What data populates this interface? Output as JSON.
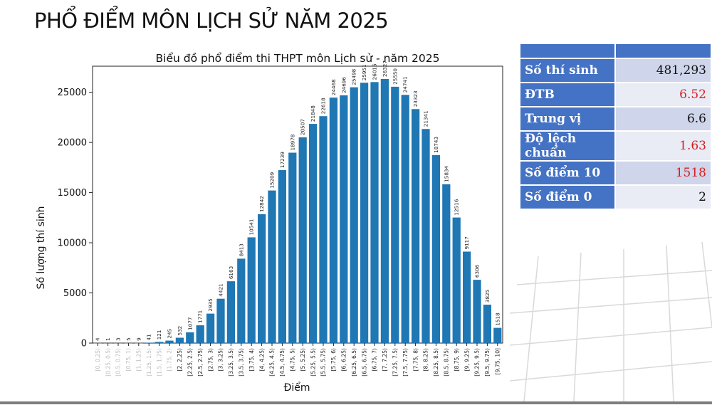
{
  "page_title": "PHỔ ĐIỂM MÔN LỊCH SỬ NĂM 2025",
  "stats_table": {
    "header": [
      "",
      ""
    ],
    "rows": [
      {
        "label": "Số thí sinh",
        "value": "481,293"
      },
      {
        "label": "ĐTB",
        "value": "6.52"
      },
      {
        "label": "Trung vị",
        "value": "6.6"
      },
      {
        "label": "Độ lệch chuẩn",
        "value": "1.63"
      },
      {
        "label": "Số điểm 10",
        "value": "1518"
      },
      {
        "label": "Số điểm 0",
        "value": "2"
      }
    ]
  },
  "colors": {
    "bar": "#1f77b4",
    "table_header": "#4472c4",
    "highlight_value": "#d62020"
  },
  "chart_data": {
    "type": "bar",
    "title": "Biểu đồ phổ điểm thi THPT môn Lịch sử - năm 2025",
    "xlabel": "Điểm",
    "ylabel": "Số lượng thí sinh",
    "ylim": [
      0,
      27600
    ],
    "yticks": [
      0,
      5000,
      10000,
      15000,
      20000,
      25000
    ],
    "grid": false,
    "categories": [
      "[0, 0.25)",
      "[0.25, 0.5)",
      "[0.5, 0.75)",
      "[0.75, 1)",
      "[1, 1.25)",
      "[1.25, 1.5)",
      "[1.5, 1.75)",
      "[1.75, 2)",
      "[2, 2.25)",
      "[2.25, 2.5)",
      "[2.5, 2.75)",
      "[2.75, 3)",
      "[3, 3.25)",
      "[3.25, 3.5)",
      "[3.5, 3.75)",
      "[3.75, 4)",
      "[4, 4.25)",
      "[4.25, 4.5)",
      "[4.5, 4.75)",
      "[4.75, 5)",
      "[5, 5.25)",
      "[5.25, 5.5)",
      "[5.5, 5.75)",
      "[5.75, 6)",
      "[6, 6.25)",
      "[6.25, 6.5)",
      "[6.5, 6.75)",
      "[6.75, 7)",
      "[7, 7.25)",
      "[7.25, 7.5)",
      "[7.5, 7.75)",
      "[7.75, 8)",
      "[8, 8.25)",
      "[8.25, 8.5)",
      "[8.5, 8.75)",
      "[8.75, 9)",
      "[9, 9.25)",
      "[9.25, 9.5)",
      "[9.5, 9.75)",
      "[9.75, 10]"
    ],
    "values": [
      4,
      1,
      3,
      5,
      9,
      41,
      121,
      245,
      532,
      1077,
      1771,
      2935,
      4421,
      6163,
      8413,
      10541,
      12842,
      15209,
      17239,
      18978,
      20507,
      21848,
      22618,
      24468,
      24696,
      25498,
      25951,
      26016,
      26327,
      25550,
      24741,
      23323,
      21341,
      18743,
      15834,
      12516,
      9117,
      6306,
      3825,
      1518
    ]
  }
}
